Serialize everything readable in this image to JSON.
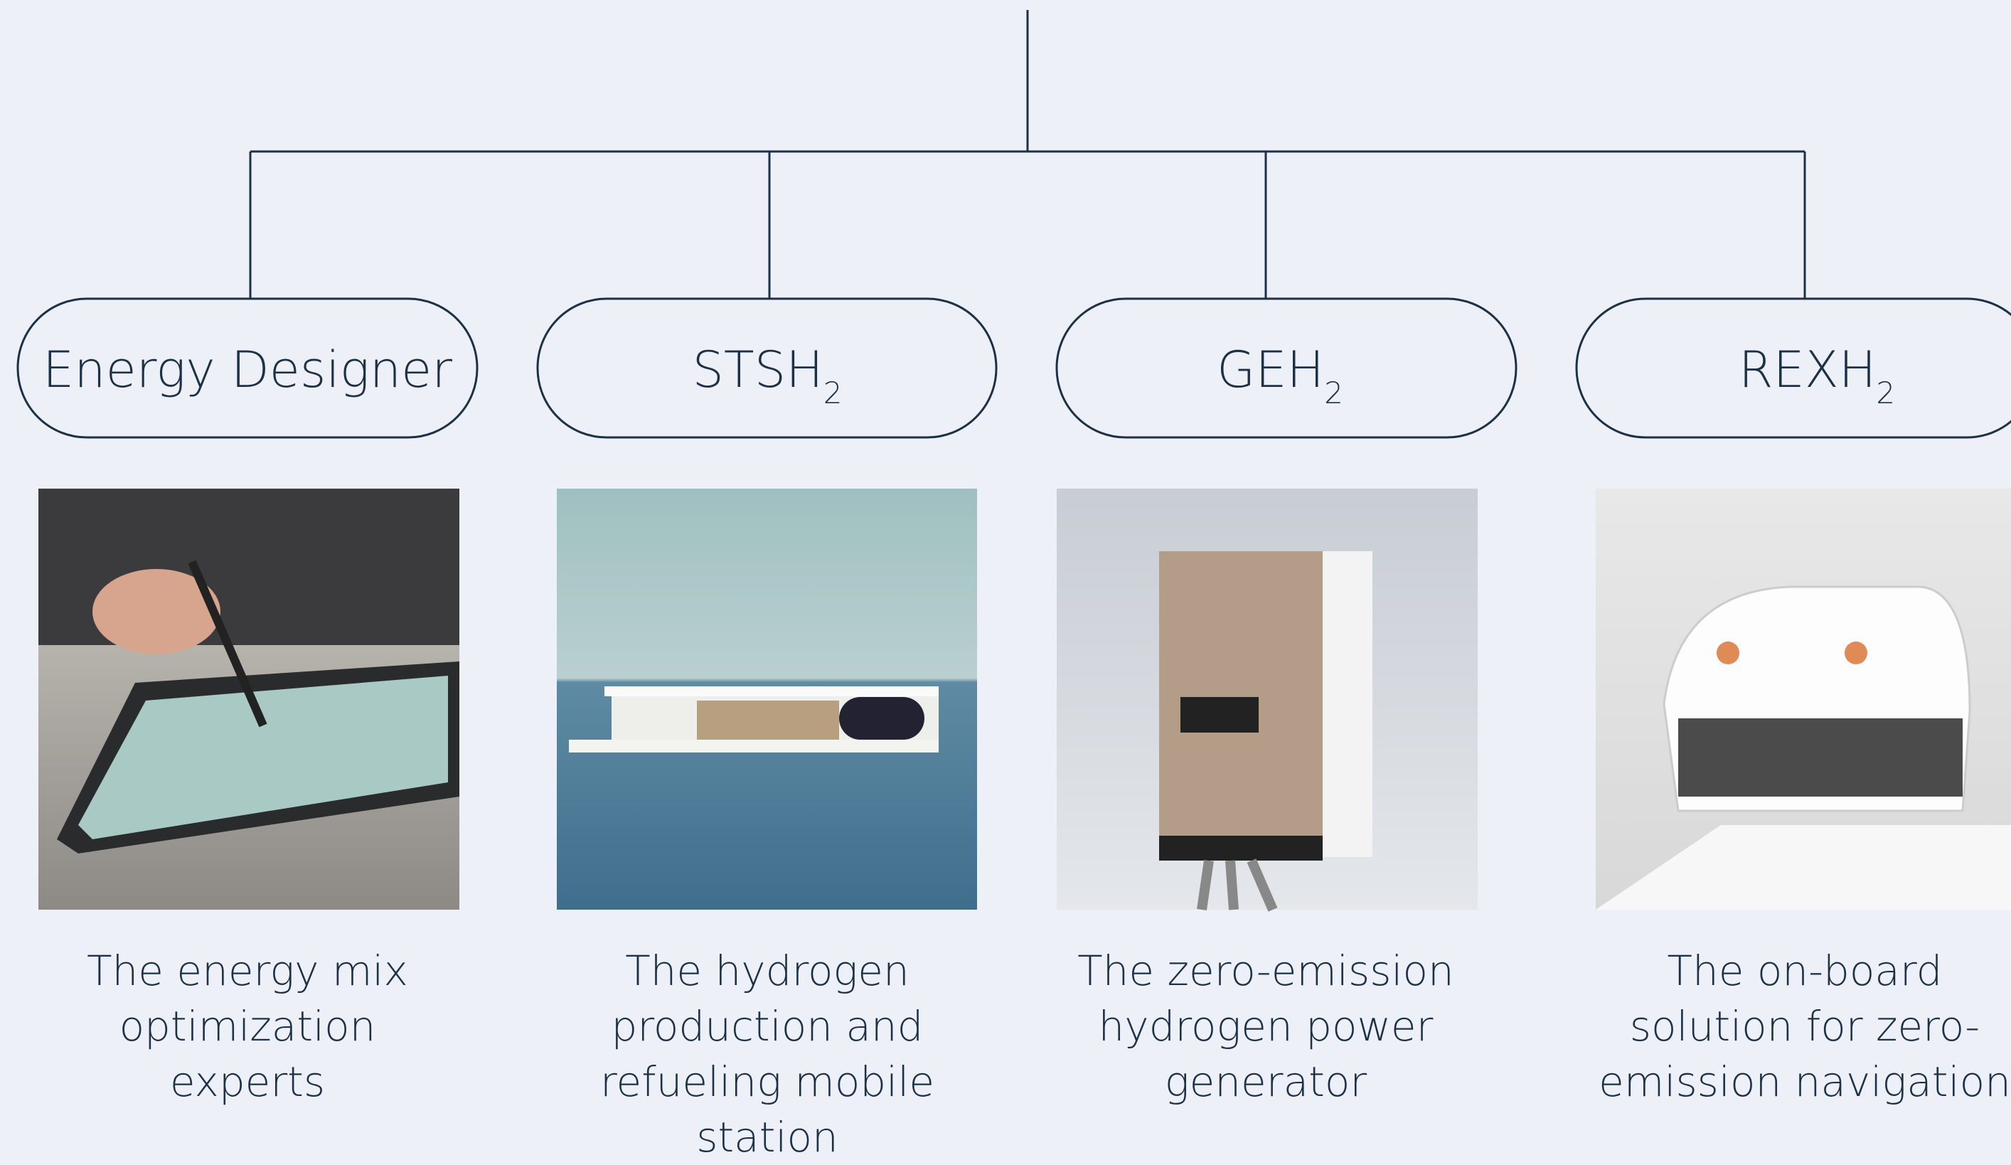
{
  "nodes": [
    {
      "label": "Energy Designer",
      "description": "The energy mix optimization experts"
    },
    {
      "label": "STSH",
      "subscript": "2",
      "description": "The hydrogen production and refueling mobile station"
    },
    {
      "label": "GEH",
      "subscript": "2",
      "description": "The zero-emission hydrogen power generator"
    },
    {
      "label": "REXH",
      "subscript": "2",
      "description": "The on-board solution for zero-emission navigation"
    }
  ]
}
